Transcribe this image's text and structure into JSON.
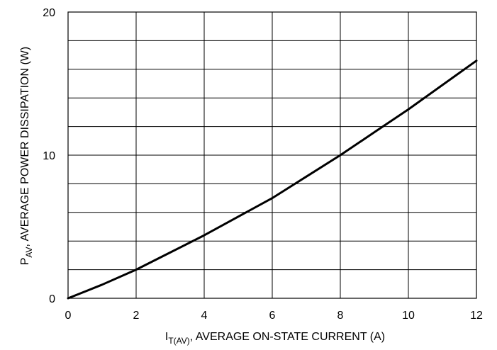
{
  "chart_data": {
    "type": "line",
    "xlabel": {
      "symbol": "I",
      "subscript": "T(AV)",
      "text": ", AVERAGE ON-STATE CURRENT (A)"
    },
    "ylabel": {
      "symbol": "P",
      "subscript": "AV",
      "text": ", AVERAGE POWER DISSIPATION (W)"
    },
    "xlim": [
      0,
      12
    ],
    "ylim": [
      0,
      20
    ],
    "x_ticks": [
      0,
      2,
      4,
      6,
      8,
      10,
      12
    ],
    "y_ticks": [
      0,
      10,
      20
    ],
    "x_gridlines": [
      0,
      2,
      4,
      6,
      8,
      10,
      12
    ],
    "y_gridlines": [
      0,
      2,
      4,
      6,
      8,
      10,
      12,
      14,
      16,
      18,
      20
    ],
    "grid": true,
    "series": [
      {
        "x": [
          0,
          1,
          2,
          3,
          4,
          5,
          6,
          7,
          8,
          9,
          10,
          11,
          12
        ],
        "y": [
          0,
          0.95,
          2.0,
          3.2,
          4.4,
          5.7,
          7.0,
          8.5,
          10.0,
          11.6,
          13.2,
          14.9,
          16.6
        ]
      }
    ],
    "line_color": "#000000"
  }
}
